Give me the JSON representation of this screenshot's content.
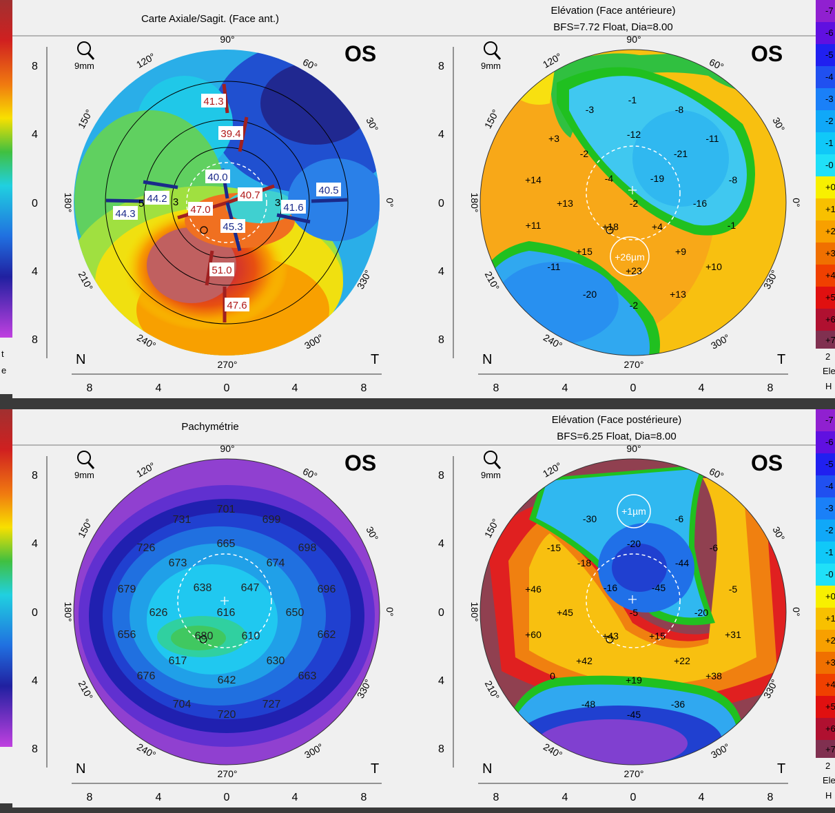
{
  "panels": [
    {
      "title": "Carte Axiale/Sagit. (Face ant.)",
      "subtitle": "",
      "eye": "OS",
      "zoom": "9mm",
      "nasal": "N",
      "temporal": "T",
      "angles": [
        "90°",
        "60°",
        "30°",
        "0°",
        "330°",
        "300°",
        "270°",
        "240°",
        "210°",
        "180°",
        "150°",
        "120°"
      ],
      "yticks": [
        "8",
        "4",
        "0",
        "4",
        "8"
      ],
      "xticks": [
        "8",
        "4",
        "0",
        "4",
        "8"
      ],
      "labels": [
        {
          "text": "41.3",
          "kind": "red"
        },
        {
          "text": "39.4",
          "kind": "red"
        },
        {
          "text": "40.0",
          "kind": "blue"
        },
        {
          "text": "40.7",
          "kind": "red"
        },
        {
          "text": "47.0",
          "kind": "red"
        },
        {
          "text": "44.2",
          "kind": "blue"
        },
        {
          "text": "44.3",
          "kind": "blue"
        },
        {
          "text": "45.3",
          "kind": "blue"
        },
        {
          "text": "41.6",
          "kind": "blue"
        },
        {
          "text": "40.5",
          "kind": "blue"
        },
        {
          "text": "51.0",
          "kind": "red"
        },
        {
          "text": "47.6",
          "kind": "red"
        },
        {
          "text": "3",
          "kind": "plain"
        },
        {
          "text": "3",
          "kind": "plain"
        },
        {
          "text": "5",
          "kind": "plain"
        }
      ]
    },
    {
      "title": "Elévation (Face antérieure)",
      "subtitle": "BFS=7.72 Float, Dia=8.00",
      "eye": "OS",
      "zoom": "9mm",
      "nasal": "N",
      "temporal": "T",
      "angles": [
        "90°",
        "60°",
        "30°",
        "0°",
        "330°",
        "300°",
        "270°",
        "240°",
        "210°",
        "180°",
        "150°",
        "120°"
      ],
      "yticks": [
        "8",
        "4",
        "0",
        "4",
        "8"
      ],
      "xticks": [
        "8",
        "4",
        "0",
        "4",
        "8"
      ],
      "values": [
        "-1",
        "-3",
        "-8",
        "+3",
        "-2",
        "-12",
        "-11",
        "-21",
        "+14",
        "-4",
        "-19",
        "-8",
        "+13",
        "-2",
        "-16",
        "+11",
        "+18",
        "+4",
        "-1",
        "+15",
        "+9",
        "+26µm",
        "+23",
        "-11",
        "+10",
        "-20",
        "-2",
        "+13"
      ]
    },
    {
      "title": "Pachymétrie",
      "subtitle": "",
      "eye": "OS",
      "zoom": "9mm",
      "angles": [
        "90°",
        "60°",
        "30°",
        "0°",
        "330°",
        "300°",
        "270°",
        "240°",
        "210°",
        "180°",
        "150°",
        "120°"
      ],
      "nasal": "N",
      "temporal": "T",
      "yticks": [
        "8",
        "4",
        "0",
        "4",
        "8"
      ],
      "xticks": [
        "8",
        "4",
        "0",
        "4",
        "8"
      ],
      "values": [
        "701",
        "731",
        "699",
        "665",
        "726",
        "698",
        "673",
        "674",
        "679",
        "638",
        "647",
        "696",
        "626",
        "616",
        "650",
        "656",
        "680",
        "610",
        "662",
        "617",
        "630",
        "676",
        "642",
        "663",
        "704",
        "727",
        "720"
      ]
    },
    {
      "title": "Elévation (Face postérieure)",
      "subtitle": "BFS=6.25 Float, Dia=8.00",
      "eye": "OS",
      "zoom": "9mm",
      "nasal": "N",
      "temporal": "T",
      "angles": [
        "90°",
        "60°",
        "30°",
        "0°",
        "330°",
        "300°",
        "270°",
        "240°",
        "210°",
        "180°",
        "150°",
        "120°"
      ],
      "yticks": [
        "8",
        "4",
        "0",
        "4",
        "8"
      ],
      "xticks": [
        "8",
        "4",
        "0",
        "4",
        "8"
      ],
      "values": [
        "+1µm",
        "-30",
        "-6",
        "-15",
        "-20",
        "-6",
        "-18",
        "-44",
        "+46",
        "-16",
        "-45",
        "-5",
        "+45",
        "-5",
        "-20",
        "+60",
        "+43",
        "+15",
        "+31",
        "+42",
        "+22",
        "0",
        "+19",
        "+38",
        "-48",
        "-36",
        "-45"
      ]
    }
  ],
  "scales": {
    "elevation_ticks": [
      "-7",
      "-6",
      "-5",
      "-4",
      "-3",
      "-2",
      "-1",
      "-0",
      "+0",
      "+1",
      "+2",
      "+3",
      "+4",
      "+5",
      "+6",
      "+7"
    ],
    "anterior_footer": [
      "2",
      "Ele",
      "H"
    ],
    "posterior_footer": [
      "2",
      "Ele",
      "H"
    ],
    "left_top_footer": [
      "t",
      "e"
    ]
  },
  "colors": {
    "panel_bg": "#f0f0f0",
    "window_bg": "#3a3a3a",
    "red_label": "#b01818",
    "blue_label": "#1a2a8a"
  }
}
